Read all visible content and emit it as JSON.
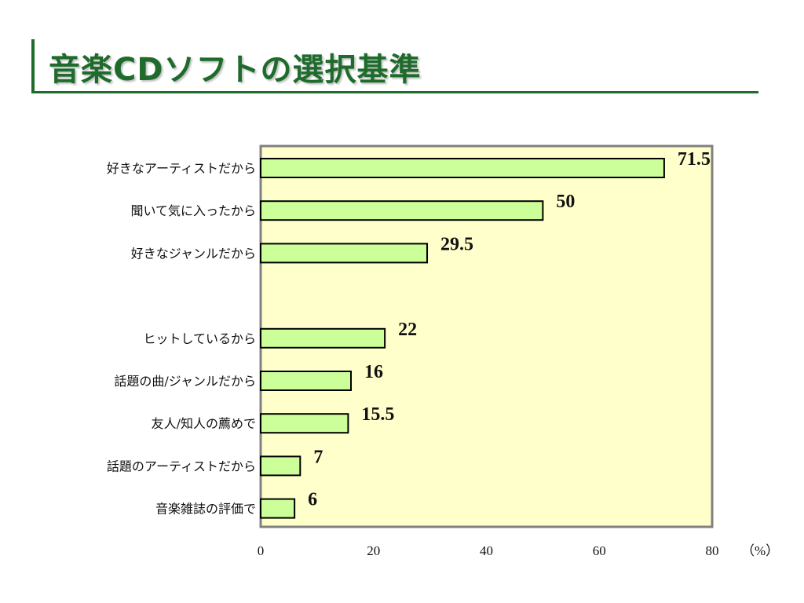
{
  "title": "音楽CDソフトの選択基準",
  "colors": {
    "title": "#1e6b2c",
    "plot_bg": "#ffffcc",
    "bar_fill": "#ccff99",
    "bar_stroke": "#000000",
    "plot_border": "#808080"
  },
  "chart_data": {
    "type": "bar",
    "orientation": "horizontal",
    "categories": [
      "好きなアーティストだから",
      "聞いて気に入ったから",
      "好きなジャンルだから",
      "",
      "ヒットしているから",
      "話題の曲/ジャンルだから",
      "友人/知人の薦めで",
      "話題のアーティストだから",
      "音楽雑誌の評価で"
    ],
    "values": [
      71.5,
      50,
      29.5,
      null,
      22,
      16,
      15.5,
      7,
      6
    ],
    "value_labels": [
      "71.5",
      "50",
      "29.5",
      "",
      "22",
      "16",
      "15.5",
      "7",
      "6"
    ],
    "xlim": [
      0,
      80
    ],
    "x_ticks": [
      "0",
      "20",
      "40",
      "60",
      "80"
    ],
    "x_unit": "（%）",
    "grid": false,
    "legend": "none"
  }
}
